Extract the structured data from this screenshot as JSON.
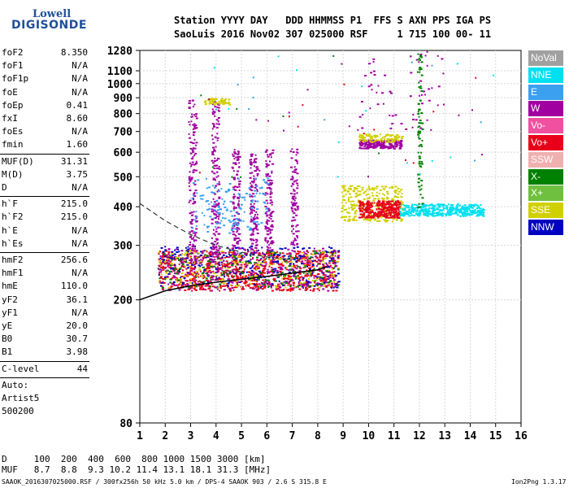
{
  "logo": {
    "line1": "Lowell",
    "line2": "DIGISONDE"
  },
  "header": {
    "line1": "Station YYYY DAY   DDD HHMMSS P1  FFS S AXN PPS IGA PS",
    "line2": "SaoLuis 2016 Nov02 307 025000 RSF     1 715 100 00- 11"
  },
  "panel": {
    "group1": [
      {
        "k": "foF2",
        "v": "8.350"
      },
      {
        "k": "foF1",
        "v": "N/A"
      },
      {
        "k": "foF1p",
        "v": "N/A"
      },
      {
        "k": "foE",
        "v": "N/A"
      },
      {
        "k": "foEp",
        "v": "0.41"
      },
      {
        "k": "fxI",
        "v": "8.60"
      },
      {
        "k": "foEs",
        "v": "N/A"
      },
      {
        "k": "fmin",
        "v": "1.60"
      }
    ],
    "group2": [
      {
        "k": "MUF(D)",
        "v": "31.31"
      },
      {
        "k": "M(D)",
        "v": "3.75"
      },
      {
        "k": "D",
        "v": "N/A"
      }
    ],
    "group3": [
      {
        "k": "h`F",
        "v": "215.0"
      },
      {
        "k": "h`F2",
        "v": "215.0"
      },
      {
        "k": "h`E",
        "v": "N/A"
      },
      {
        "k": "h`Es",
        "v": "N/A"
      }
    ],
    "group4": [
      {
        "k": "hmF2",
        "v": "256.6"
      },
      {
        "k": "hmF1",
        "v": "N/A"
      },
      {
        "k": "hmE",
        "v": "110.0"
      },
      {
        "k": "yF2",
        "v": "36.1"
      },
      {
        "k": "yF1",
        "v": "N/A"
      },
      {
        "k": "yE",
        "v": "20.0"
      },
      {
        "k": "B0",
        "v": "30.7"
      },
      {
        "k": "B1",
        "v": "3.98"
      }
    ],
    "clevel": {
      "k": "C-level",
      "v": "44"
    },
    "auto": [
      "Auto:",
      "Artist5",
      "500200"
    ]
  },
  "legend": [
    {
      "label": "NoVal",
      "color": "#a0a0a0"
    },
    {
      "label": "NNE",
      "color": "#00e0f0"
    },
    {
      "label": "E",
      "color": "#3ca0f0"
    },
    {
      "label": "W",
      "color": "#a000a0"
    },
    {
      "label": "Vo-",
      "color": "#f050a0"
    },
    {
      "label": "Vo+",
      "color": "#e8001a"
    },
    {
      "label": "SSW",
      "color": "#f0b0b0"
    },
    {
      "label": "X-",
      "color": "#008000"
    },
    {
      "label": "X+",
      "color": "#70c040"
    },
    {
      "label": "SSE",
      "color": "#d0d000"
    },
    {
      "label": "NNW",
      "color": "#0000c0"
    }
  ],
  "footer": {
    "line1": "D     100  200  400  600  800 1000 1500 3000 [km]",
    "line2": "MUF   8.7  8.8  9.3 10.2 11.4 13.1 18.1 31.3 [MHz]",
    "line3": "SAAOK_2016307025000.RSF / 300fx256h 50 kHz 5.0 km / DPS-4 SAAOK 903 / 2.6 S 315.8 E",
    "version": "Ion2Png 1.3.17"
  },
  "chart_data": {
    "type": "scatter",
    "xlim": [
      1,
      16
    ],
    "ylim": [
      80,
      1280
    ],
    "y_scale": "log",
    "x_ticks": [
      "1",
      "2",
      "3",
      "4",
      "5",
      "6",
      "7",
      "8",
      "9",
      "10",
      "11",
      "12",
      "13",
      "14",
      "15",
      "16"
    ],
    "y_ticks": [
      "80",
      "200",
      "300",
      "400",
      "500",
      "600",
      "700",
      "800",
      "900",
      "1000",
      "1100",
      "1280"
    ],
    "y_tick_values": [
      80,
      200,
      300,
      400,
      500,
      600,
      700,
      800,
      900,
      1000,
      1100,
      1280
    ],
    "grid": true,
    "profile_curve": [
      [
        1,
        200
      ],
      [
        2,
        214
      ],
      [
        3,
        222
      ],
      [
        4,
        228
      ],
      [
        5,
        233
      ],
      [
        6,
        238
      ],
      [
        7,
        244
      ],
      [
        8,
        250
      ],
      [
        8.35,
        256
      ]
    ],
    "dashed_curve": [
      [
        1,
        410
      ],
      [
        2,
        360
      ],
      [
        3,
        325
      ],
      [
        4,
        300
      ],
      [
        5,
        285
      ],
      [
        6,
        275
      ],
      [
        7,
        270
      ]
    ],
    "clusters": [
      {
        "x": [
          1.7,
          8.8
        ],
        "y": [
          215,
          290
        ],
        "color": "#e8001a",
        "density": 900
      },
      {
        "x": [
          1.7,
          8.8
        ],
        "y": [
          220,
          300
        ],
        "color": "#0000c0",
        "density": 300
      },
      {
        "x": [
          1.7,
          8.8
        ],
        "y": [
          215,
          295
        ],
        "color": "#a000a0",
        "density": 300
      },
      {
        "x": [
          1.7,
          8.8
        ],
        "y": [
          220,
          290
        ],
        "color": "#d0d000",
        "density": 200
      },
      {
        "x": [
          1.7,
          8.8
        ],
        "y": [
          220,
          290
        ],
        "color": "#008000",
        "density": 150
      },
      {
        "x": [
          2.9,
          3.2
        ],
        "y": [
          260,
          900
        ],
        "color": "#a000a0",
        "density": 150
      },
      {
        "x": [
          3.8,
          4.1
        ],
        "y": [
          270,
          880
        ],
        "color": "#a000a0",
        "density": 160
      },
      {
        "x": [
          4.6,
          4.9
        ],
        "y": [
          280,
          620
        ],
        "color": "#a000a0",
        "density": 120
      },
      {
        "x": [
          5.3,
          5.6
        ],
        "y": [
          280,
          600
        ],
        "color": "#a000a0",
        "density": 120
      },
      {
        "x": [
          5.9,
          6.2
        ],
        "y": [
          290,
          620
        ],
        "color": "#a000a0",
        "density": 120
      },
      {
        "x": [
          6.9,
          7.2
        ],
        "y": [
          300,
          620
        ],
        "color": "#a000a0",
        "density": 100
      },
      {
        "x": [
          3,
          6
        ],
        "y": [
          330,
          500
        ],
        "color": "#3ca0f0",
        "density": 150
      },
      {
        "x": [
          3.5,
          4.5
        ],
        "y": [
          860,
          900
        ],
        "color": "#d0d000",
        "density": 60
      },
      {
        "x": [
          8.9,
          11.3
        ],
        "y": [
          360,
          470
        ],
        "color": "#d0d000",
        "density": 300
      },
      {
        "x": [
          9.6,
          11.2
        ],
        "y": [
          370,
          420
        ],
        "color": "#e8001a",
        "density": 300
      },
      {
        "x": [
          11.2,
          14.5
        ],
        "y": [
          375,
          410
        ],
        "color": "#00e0f0",
        "density": 400
      },
      {
        "x": [
          9.6,
          11.3
        ],
        "y": [
          620,
          660
        ],
        "color": "#a000a0",
        "density": 200
      },
      {
        "x": [
          9.6,
          11.3
        ],
        "y": [
          650,
          690
        ],
        "color": "#d0d000",
        "density": 100
      },
      {
        "x": [
          9.5,
          13
        ],
        "y": [
          700,
          1280
        ],
        "color": "#a000a0",
        "density": 60
      },
      {
        "x": [
          11.9,
          12.1
        ],
        "y": [
          400,
          1280
        ],
        "color": "#008000",
        "density": 80
      }
    ]
  }
}
